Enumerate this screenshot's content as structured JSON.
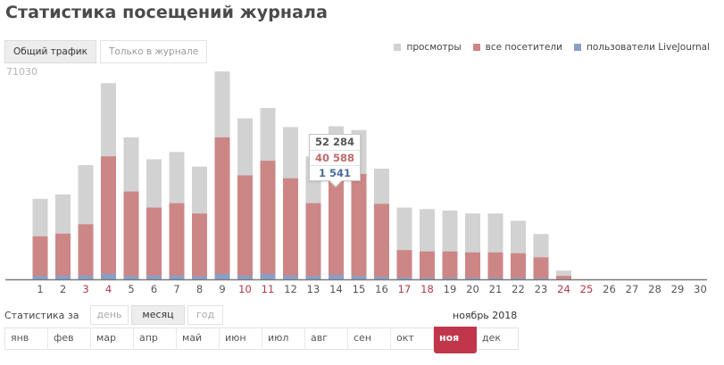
{
  "page": {
    "title": "Статистика посещений журнала"
  },
  "tabs": [
    {
      "label": "Общий трафик",
      "active": true
    },
    {
      "label": "Только в журнале",
      "active": false
    }
  ],
  "legend": [
    {
      "label": "просмотры",
      "color": "#d2d2d2"
    },
    {
      "label": "все посетители",
      "color": "#cd8686"
    },
    {
      "label": "пользователи LiveJournal",
      "color": "#8a9fc6"
    }
  ],
  "chart_data": {
    "type": "bar",
    "stacked_overlay": true,
    "y_max_label": "71030",
    "ylim": [
      0,
      71030
    ],
    "categories": [
      "1",
      "2",
      "3",
      "4",
      "5",
      "6",
      "7",
      "8",
      "9",
      "10",
      "11",
      "12",
      "13",
      "14",
      "15",
      "16",
      "17",
      "18",
      "19",
      "20",
      "21",
      "22",
      "23",
      "24",
      "25",
      "26",
      "27",
      "28",
      "29",
      "30"
    ],
    "category_colors": [
      "#555555",
      "#555555",
      "#b03a4a",
      "#b03a4a",
      "#555555",
      "#555555",
      "#555555",
      "#555555",
      "#555555",
      "#b03a4a",
      "#b03a4a",
      "#555555",
      "#555555",
      "#555555",
      "#555555",
      "#555555",
      "#b03a4a",
      "#b03a4a",
      "#555555",
      "#555555",
      "#555555",
      "#555555",
      "#555555",
      "#b03a4a",
      "#b03a4a",
      "#555555",
      "#555555",
      "#555555",
      "#555555",
      "#555555"
    ],
    "series": [
      {
        "name": "просмотры",
        "color": "#d2d2d2",
        "values": [
          27500,
          29000,
          39000,
          67000,
          48500,
          41000,
          43500,
          38500,
          71000,
          55000,
          58500,
          52000,
          42000,
          52284,
          51000,
          37800,
          24500,
          24000,
          23500,
          22500,
          22500,
          20000,
          15500,
          3000,
          0,
          0,
          0,
          0,
          0,
          0
        ]
      },
      {
        "name": "все посетители",
        "color": "#cd8686",
        "values": [
          14700,
          15600,
          18800,
          42000,
          30000,
          24500,
          26000,
          22500,
          48500,
          35500,
          40500,
          34500,
          26000,
          40588,
          36000,
          25800,
          10000,
          9500,
          9500,
          9200,
          9200,
          8900,
          7500,
          1200,
          0,
          0,
          0,
          0,
          0,
          0
        ]
      },
      {
        "name": "пользователи LiveJournal",
        "color": "#8a9fc6",
        "values": [
          1200,
          1300,
          1300,
          1900,
          1200,
          1300,
          1300,
          1100,
          1900,
          1300,
          1900,
          1300,
          1200,
          1541,
          1200,
          900,
          600,
          500,
          500,
          500,
          500,
          500,
          400,
          100,
          0,
          0,
          0,
          0,
          0,
          0
        ]
      }
    ]
  },
  "tooltip": {
    "views": "52 284",
    "visitors": "40 588",
    "lj_users": "1 541",
    "views_color": "#555555",
    "visitors_color": "#c06a6a",
    "lj_users_color": "#4a6a9c"
  },
  "period": {
    "label": "Статистика за",
    "buttons": [
      {
        "label": "день",
        "active": false
      },
      {
        "label": "месяц",
        "active": true
      },
      {
        "label": "год",
        "active": false
      }
    ],
    "current": "ноябрь 2018"
  },
  "months": [
    {
      "label": "янв",
      "selected": false
    },
    {
      "label": "фев",
      "selected": false
    },
    {
      "label": "мар",
      "selected": false
    },
    {
      "label": "апр",
      "selected": false
    },
    {
      "label": "май",
      "selected": false
    },
    {
      "label": "июн",
      "selected": false
    },
    {
      "label": "июл",
      "selected": false
    },
    {
      "label": "авг",
      "selected": false
    },
    {
      "label": "сен",
      "selected": false
    },
    {
      "label": "окт",
      "selected": false
    },
    {
      "label": "ноя",
      "selected": true
    },
    {
      "label": "дек",
      "selected": false
    }
  ],
  "colors": {
    "accent": "#c0364b",
    "weekend": "#b03a4a",
    "baseline": "#7a7a7a"
  }
}
